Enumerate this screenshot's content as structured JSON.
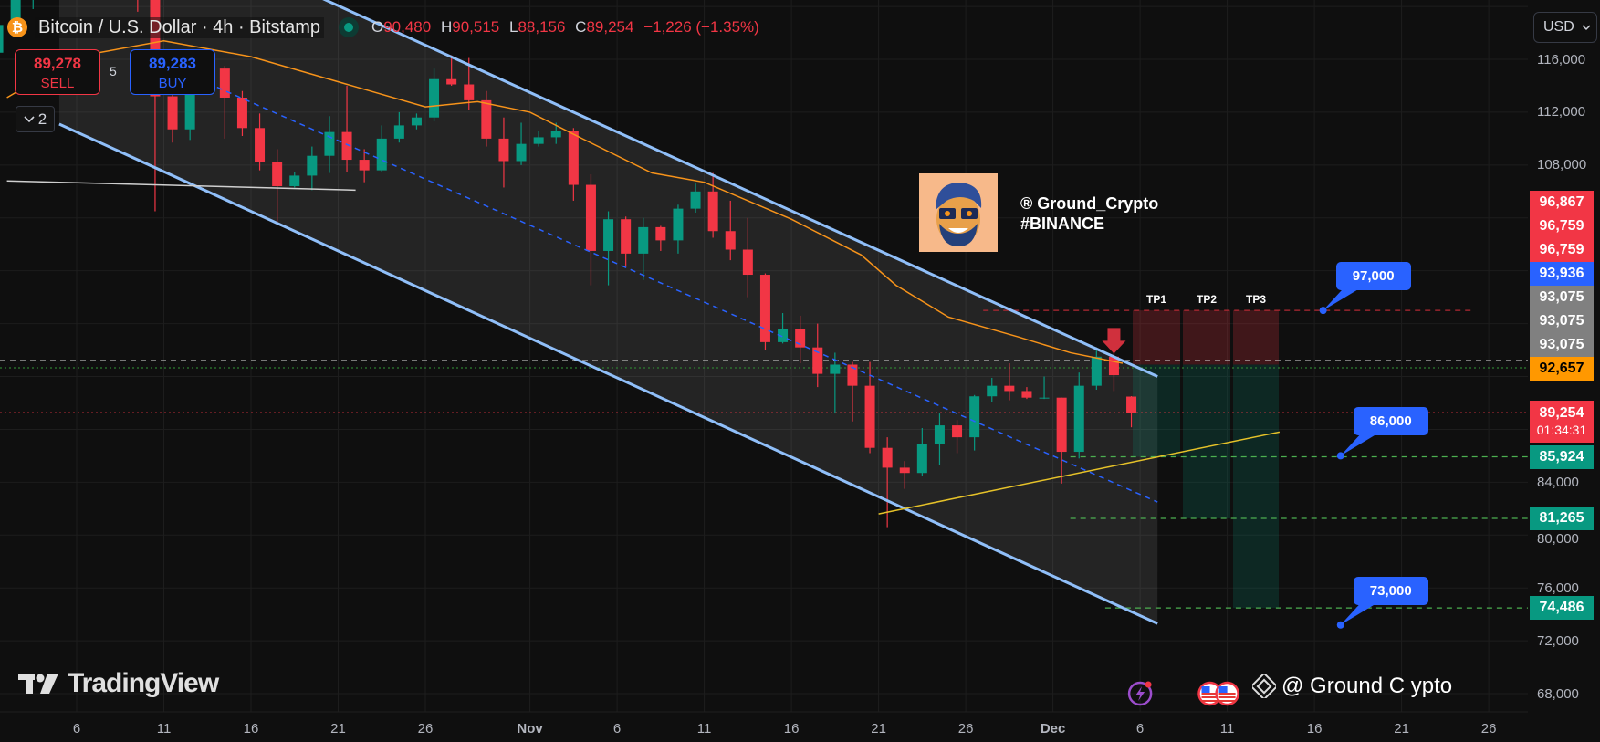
{
  "header": {
    "symbol_icon": "bitcoin-icon",
    "title": "Bitcoin / U.S. Dollar · 4h · Bitstamp",
    "ohlc": {
      "o_label": "O",
      "o": "90,480",
      "h_label": "H",
      "h": "90,515",
      "l_label": "L",
      "l": "88,156",
      "c_label": "C",
      "c": "89,254",
      "change": "−1,226 (−1.35%)"
    }
  },
  "trade": {
    "sell_price": "89,278",
    "sell_label": "SELL",
    "spread": "5",
    "buy_price": "89,283",
    "buy_label": "BUY"
  },
  "indicators_toggle": {
    "count": "2"
  },
  "currency": "USD",
  "watermark": {
    "handle": "® Ground_Crypto",
    "tag": "#BINANCE"
  },
  "logo": "TradingView",
  "bottom_watermark": "@ Ground C ypto",
  "colors": {
    "up": "#089981",
    "down": "#f23645",
    "background": "#0f0f0f",
    "channel": "#90bff9",
    "ma": "#f7931a",
    "accent": "#2962ff",
    "trendline": "#e6c229"
  },
  "chart_data": {
    "type": "candlestick",
    "interval": "4h",
    "ylim": [
      66000,
      120500
    ],
    "grid": true,
    "x_ticks": [
      {
        "label": "6",
        "date": "Oct 6"
      },
      {
        "label": "11",
        "date": "Oct 11"
      },
      {
        "label": "16",
        "date": "Oct 16"
      },
      {
        "label": "21",
        "date": "Oct 21"
      },
      {
        "label": "26",
        "date": "Oct 26"
      },
      {
        "label": "Nov",
        "date": "Nov 1"
      },
      {
        "label": "6",
        "date": "Nov 6"
      },
      {
        "label": "11",
        "date": "Nov 11"
      },
      {
        "label": "16",
        "date": "Nov 16"
      },
      {
        "label": "21",
        "date": "Nov 21"
      },
      {
        "label": "26",
        "date": "Nov 26"
      },
      {
        "label": "Dec",
        "date": "Dec 1"
      },
      {
        "label": "6",
        "date": "Dec 6"
      },
      {
        "label": "11",
        "date": "Dec 11"
      },
      {
        "label": "16",
        "date": "Dec 16"
      },
      {
        "label": "21",
        "date": "Dec 21"
      },
      {
        "label": "26",
        "date": "Dec 26"
      }
    ],
    "y_ticks": [
      {
        "label": "116,000",
        "value": 116000
      },
      {
        "label": "112,000",
        "value": 112000
      },
      {
        "label": "108,000",
        "value": 108000
      },
      {
        "label": "84,000",
        "value": 84000
      },
      {
        "label": "80,000",
        "value": 80000
      },
      {
        "label": "76,000",
        "value": 76000
      },
      {
        "label": "72,000",
        "value": 72000
      },
      {
        "label": "68,000",
        "value": 68000
      }
    ],
    "candles": [
      [
        "Oct 1",
        116500,
        118800,
        116200,
        118600
      ],
      [
        "Oct 2",
        118600,
        120800,
        118300,
        120600
      ],
      [
        "Oct 3",
        120600,
        123000,
        119800,
        122300
      ],
      [
        "Oct 4",
        122300,
        122900,
        121500,
        122400
      ],
      [
        "Oct 5",
        122400,
        125700,
        122000,
        123500
      ],
      [
        "Oct 6",
        123500,
        126200,
        123000,
        124800
      ],
      [
        "Oct 7",
        124800,
        125000,
        120600,
        121400
      ],
      [
        "Oct 8",
        121400,
        124100,
        121000,
        123300
      ],
      [
        "Oct 9",
        123300,
        123700,
        119600,
        121700
      ],
      [
        "Oct 10",
        121700,
        122500,
        104500,
        113200
      ],
      [
        "Oct 11",
        113200,
        113800,
        109700,
        110700
      ],
      [
        "Oct 12",
        110700,
        115700,
        109900,
        115200
      ],
      [
        "Oct 13",
        115200,
        115900,
        113500,
        115300
      ],
      [
        "Oct 14",
        115300,
        115500,
        110000,
        113100
      ],
      [
        "Oct 15",
        113100,
        113600,
        110200,
        110800
      ],
      [
        "Oct 16",
        110800,
        111900,
        107600,
        108200
      ],
      [
        "Oct 17",
        108200,
        109200,
        103600,
        106400
      ],
      [
        "Oct 18",
        106400,
        107500,
        106300,
        107200
      ],
      [
        "Oct 19",
        107200,
        109400,
        106100,
        108700
      ],
      [
        "Oct 20",
        108700,
        111700,
        107400,
        110500
      ],
      [
        "Oct 21",
        110500,
        114000,
        107500,
        108400
      ],
      [
        "Oct 22",
        108400,
        109200,
        106700,
        107600
      ],
      [
        "Oct 23",
        107600,
        111000,
        107500,
        110000
      ],
      [
        "Oct 24",
        110000,
        112000,
        109700,
        111000
      ],
      [
        "Oct 25",
        111000,
        111900,
        110700,
        111600
      ],
      [
        "Oct 26",
        111600,
        115300,
        111300,
        114500
      ],
      [
        "Oct 27",
        114500,
        116300,
        114000,
        114100
      ],
      [
        "Oct 28",
        114100,
        116100,
        112200,
        112900
      ],
      [
        "Oct 29",
        112900,
        113600,
        109400,
        110000
      ],
      [
        "Oct 30",
        110000,
        111600,
        106300,
        108300
      ],
      [
        "Oct 31",
        108300,
        111200,
        108000,
        109600
      ],
      [
        "Nov 1",
        109600,
        110600,
        109400,
        110100
      ],
      [
        "Nov 2",
        110100,
        111200,
        109600,
        110600
      ],
      [
        "Nov 3",
        110600,
        110800,
        105300,
        106500
      ],
      [
        "Nov 4",
        106500,
        107300,
        98900,
        101500
      ],
      [
        "Nov 5",
        101500,
        104500,
        98900,
        103900
      ],
      [
        "Nov 6",
        103900,
        104100,
        100300,
        101300
      ],
      [
        "Nov 7",
        101300,
        104000,
        99300,
        103300
      ],
      [
        "Nov 8",
        103300,
        103400,
        101500,
        102300
      ],
      [
        "Nov 9",
        102300,
        105000,
        101300,
        104700
      ],
      [
        "Nov 10",
        104700,
        106600,
        104400,
        106000
      ],
      [
        "Nov 11",
        106000,
        107400,
        102500,
        103000
      ],
      [
        "Nov 12",
        103000,
        105300,
        100800,
        101600
      ],
      [
        "Nov 13",
        101600,
        104000,
        98000,
        99700
      ],
      [
        "Nov 14",
        99700,
        99800,
        94000,
        94600
      ],
      [
        "Nov 15",
        94600,
        96800,
        94500,
        95600
      ],
      [
        "Nov 16",
        95600,
        96600,
        93000,
        94200
      ],
      [
        "Nov 17",
        94200,
        96000,
        91200,
        92200
      ],
      [
        "Nov 18",
        92200,
        93800,
        89200,
        92900
      ],
      [
        "Nov 19",
        92900,
        93100,
        88600,
        91300
      ],
      [
        "Nov 20",
        91300,
        93100,
        86200,
        86600
      ],
      [
        "Nov 21",
        86600,
        87400,
        80600,
        85100
      ],
      [
        "Nov 22",
        85100,
        85600,
        83500,
        84700
      ],
      [
        "Nov 23",
        84700,
        88100,
        84500,
        86900
      ],
      [
        "Nov 24",
        86900,
        89200,
        85300,
        88300
      ],
      [
        "Nov 25",
        88300,
        88700,
        86200,
        87400
      ],
      [
        "Nov 26",
        87400,
        90600,
        86400,
        90500
      ],
      [
        "Nov 27",
        90500,
        91900,
        90100,
        91300
      ],
      [
        "Nov 28",
        91300,
        93000,
        90200,
        90900
      ],
      [
        "Nov 29",
        90900,
        91200,
        90300,
        90400
      ],
      [
        "Nov 30",
        90400,
        92000,
        90300,
        90400
      ],
      [
        "Dec 1",
        90400,
        90400,
        83900,
        86300
      ],
      [
        "Dec 2",
        86300,
        92300,
        85800,
        91300
      ],
      [
        "Dec 3",
        91300,
        94200,
        91000,
        93500
      ],
      [
        "Dec 4",
        93500,
        94100,
        90900,
        92100
      ],
      [
        "Dec 5",
        90480,
        90515,
        88156,
        89254
      ]
    ],
    "moving_average": [
      [
        "Oct 2",
        113100
      ],
      [
        "Oct 6",
        116200
      ],
      [
        "Oct 11",
        117400
      ],
      [
        "Oct 16",
        116200
      ],
      [
        "Oct 21",
        114300
      ],
      [
        "Oct 26",
        112400
      ],
      [
        "Oct 29",
        112800
      ],
      [
        "Nov 1",
        112000
      ],
      [
        "Nov 4",
        110000
      ],
      [
        "Nov 8",
        107400
      ],
      [
        "Nov 11",
        106700
      ],
      [
        "Nov 16",
        103900
      ],
      [
        "Nov 20",
        101200
      ],
      [
        "Nov 22",
        98900
      ],
      [
        "Nov 25",
        96500
      ],
      [
        "Nov 29",
        95000
      ],
      [
        "Dec 2",
        93800
      ],
      [
        "Dec 5",
        93000
      ]
    ],
    "trend_lines": [
      {
        "name": "channel-upper",
        "from": [
          "Oct 1",
          132000
        ],
        "to": [
          "Dec 7",
          92000
        ],
        "color": "#90bff9",
        "style": "solid"
      },
      {
        "name": "channel-lower",
        "from": [
          "Oct 5",
          111100
        ],
        "to": [
          "Dec 7",
          73300
        ],
        "color": "#90bff9",
        "style": "solid"
      },
      {
        "name": "channel-mid",
        "from": [
          "Oct 13",
          114500
        ],
        "to": [
          "Dec 7",
          82500
        ],
        "color": "#2962ff",
        "style": "dashed"
      },
      {
        "name": "support-trendline",
        "from": [
          "Nov 21",
          81600
        ],
        "to": [
          "Dec 14",
          87800
        ],
        "color": "#e6c229",
        "style": "solid"
      },
      {
        "name": "old-support",
        "from": [
          "Oct 2",
          106800
        ],
        "to": [
          "Oct 22",
          106100
        ],
        "color": "#cfcfcf",
        "style": "solid"
      }
    ],
    "levels": [
      {
        "price": 93200,
        "color": "#e0e0e0",
        "style": "dashed"
      },
      {
        "price": 92657,
        "color": "#2e7d32",
        "style": "dotted"
      },
      {
        "price": 89254,
        "color": "#f23645",
        "style": "dotted"
      },
      {
        "price": 97000,
        "color": "#b22833",
        "style": "dashed",
        "from": "Nov 27",
        "to": "Dec 25"
      },
      {
        "price": 85924,
        "color": "#4caf50",
        "style": "dashed",
        "from": "Dec 2"
      },
      {
        "price": 81265,
        "color": "#4caf50",
        "style": "dashed",
        "from": "Dec 2"
      },
      {
        "price": 74486,
        "color": "#4caf50",
        "style": "dashed",
        "from": "Dec 4"
      }
    ],
    "targets": [
      {
        "label": "TP1",
        "stop": 97000,
        "entry": 92900,
        "target": 85924
      },
      {
        "label": "TP2",
        "stop": 97000,
        "entry": 92900,
        "target": 81265
      },
      {
        "label": "TP3",
        "stop": 97000,
        "entry": 92900,
        "target": 74486
      }
    ],
    "sell_signal": {
      "date": "Dec 4",
      "price": 94700,
      "icon": "arrow-down-icon"
    },
    "callouts": [
      {
        "text": "97,000",
        "date": "Dec 16",
        "price": 97000
      },
      {
        "text": "86,000",
        "date": "Dec 17",
        "price": 86000
      },
      {
        "text": "73,000",
        "date": "Dec 17",
        "price": 73200
      }
    ],
    "price_tags": [
      {
        "value": "96,867",
        "color": "#f23645",
        "text_color": "#ffffff"
      },
      {
        "value": "96,759",
        "color": "#f23645",
        "text_color": "#ffffff"
      },
      {
        "value": "96,759",
        "color": "#f23645",
        "text_color": "#ffffff"
      },
      {
        "value": "93,936",
        "color": "#2962ff",
        "text_color": "#ffffff"
      },
      {
        "value": "93,075",
        "color": "#808080",
        "text_color": "#ffffff"
      },
      {
        "value": "93,075",
        "color": "#808080",
        "text_color": "#ffffff"
      },
      {
        "value": "93,075",
        "color": "#808080",
        "text_color": "#ffffff"
      },
      {
        "value": "92,657",
        "color": "#ff9800",
        "text_color": "#000000",
        "price": 92657
      },
      {
        "value": "89,254",
        "sub": "01:34:31",
        "color": "#f23645",
        "text_color": "#ffffff",
        "price": 89254
      },
      {
        "value": "85,924",
        "color": "#089981",
        "text_color": "#ffffff",
        "price": 85924
      },
      {
        "value": "81,265",
        "color": "#089981",
        "text_color": "#ffffff",
        "price": 81265
      },
      {
        "value": "74,486",
        "color": "#089981",
        "text_color": "#ffffff",
        "price": 74486
      }
    ],
    "events": [
      {
        "icon": "lightning-icon",
        "date": "Dec 6"
      },
      {
        "icon": "us-flag-icon",
        "date": "Dec 10"
      },
      {
        "icon": "us-flag-icon",
        "date": "Dec 11"
      }
    ]
  }
}
